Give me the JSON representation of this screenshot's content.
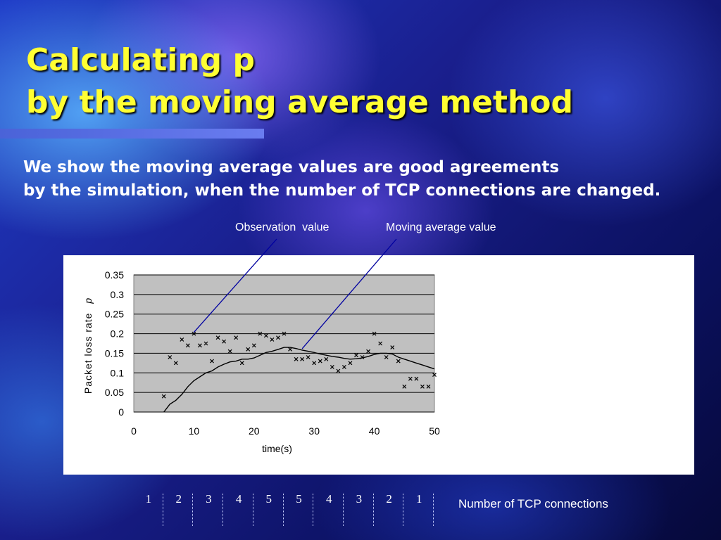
{
  "slide": {
    "title_line1": "Calculating p",
    "title_line2": "by the moving average method",
    "subtitle_line1": "We show the moving average values are  good agreements",
    "subtitle_line2": "by the simulation, when the number of TCP connections are changed.",
    "callout_observation": "Observation  value",
    "callout_moving_average": "Moving average value",
    "connections_label": "Number of TCP connections",
    "connections": [
      "1",
      "2",
      "3",
      "4",
      "5",
      "5",
      "4",
      "3",
      "2",
      "1"
    ],
    "colors": {
      "title": "#ffff33",
      "text": "#ffffff",
      "callout_line": "#0000a0"
    }
  },
  "chart_data": {
    "type": "scatter",
    "xlabel": "time(s)",
    "ylabel": "Packet loss rate",
    "ylabel_symbol": "p",
    "xlim": [
      0,
      50
    ],
    "ylim": [
      0,
      0.35
    ],
    "x_ticks": [
      "0",
      "10",
      "20",
      "30",
      "40",
      "50"
    ],
    "y_ticks": [
      "0",
      "0.05",
      "0.1",
      "0.15",
      "0.2",
      "0.25",
      "0.3",
      "0.35"
    ],
    "grid": "horizontal",
    "series": [
      {
        "marker": "x",
        "x": [
          5,
          6,
          7,
          8,
          9,
          10,
          11,
          12,
          13,
          14,
          15,
          16,
          17,
          18,
          19,
          20,
          21,
          22,
          23,
          24,
          25,
          26,
          27,
          28,
          29,
          30,
          31,
          32,
          33,
          34,
          35,
          36,
          37,
          38,
          39,
          40,
          41,
          42,
          43,
          44,
          45,
          46,
          47,
          48,
          49,
          50
        ],
        "y": [
          0.04,
          0.14,
          0.125,
          0.185,
          0.17,
          0.2,
          0.17,
          0.175,
          0.13,
          0.19,
          0.18,
          0.155,
          0.19,
          0.125,
          0.16,
          0.17,
          0.2,
          0.195,
          0.185,
          0.19,
          0.2,
          0.16,
          0.135,
          0.135,
          0.14,
          0.125,
          0.13,
          0.135,
          0.115,
          0.105,
          0.115,
          0.125,
          0.145,
          0.14,
          0.155,
          0.2,
          0.175,
          0.14,
          0.165,
          0.13,
          0.065,
          0.085,
          0.085,
          0.065,
          0.065,
          0.095
        ]
      },
      {
        "type": "line",
        "x": [
          5,
          6,
          7,
          8,
          9,
          10,
          11,
          12,
          13,
          14,
          15,
          16,
          17,
          18,
          19,
          20,
          21,
          22,
          23,
          24,
          25,
          26,
          27,
          28,
          29,
          30,
          31,
          32,
          33,
          34,
          35,
          36,
          37,
          38,
          39,
          40,
          41,
          42,
          43,
          44,
          45,
          46,
          47,
          48,
          49,
          50
        ],
        "y": [
          0,
          0.02,
          0.03,
          0.045,
          0.065,
          0.08,
          0.09,
          0.1,
          0.105,
          0.115,
          0.122,
          0.128,
          0.13,
          0.135,
          0.135,
          0.138,
          0.145,
          0.152,
          0.155,
          0.16,
          0.165,
          0.165,
          0.162,
          0.158,
          0.155,
          0.152,
          0.148,
          0.145,
          0.142,
          0.14,
          0.137,
          0.135,
          0.136,
          0.138,
          0.142,
          0.147,
          0.15,
          0.15,
          0.148,
          0.14,
          0.135,
          0.13,
          0.125,
          0.12,
          0.115,
          0.11
        ]
      }
    ]
  }
}
